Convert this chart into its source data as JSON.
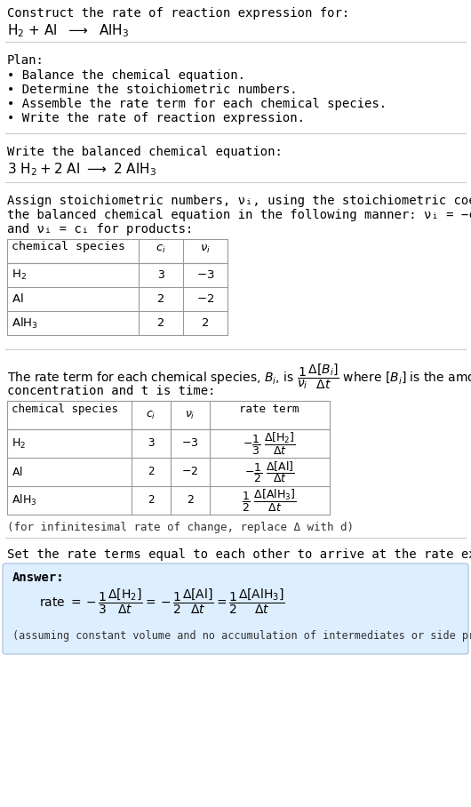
{
  "bg_color": "#ffffff",
  "text_color": "#000000",
  "answer_bg_color": "#ddeeff",
  "answer_border_color": "#aabbcc",
  "line_color": "#cccccc",
  "title_line1": "Construct the rate of reaction expression for:",
  "plan_header": "Plan:",
  "plan_items": [
    "• Balance the chemical equation.",
    "• Determine the stoichiometric numbers.",
    "• Assemble the rate term for each chemical species.",
    "• Write the rate of reaction expression."
  ],
  "balanced_header": "Write the balanced chemical equation:",
  "assign_text": [
    "Assign stoichiometric numbers, νᵢ, using the stoichiometric coefficients, cᵢ, from",
    "the balanced chemical equation in the following manner: νᵢ = −cᵢ for reactants",
    "and νᵢ = cᵢ for products:"
  ],
  "rate_text1": "concentration and t is time:",
  "infinitesimal_note": "(for infinitesimal rate of change, replace Δ with d)",
  "set_rate_text": "Set the rate terms equal to each other to arrive at the rate expression:",
  "answer_label": "Answer:",
  "answer_note": "(assuming constant volume and no accumulation of intermediates or side products)"
}
